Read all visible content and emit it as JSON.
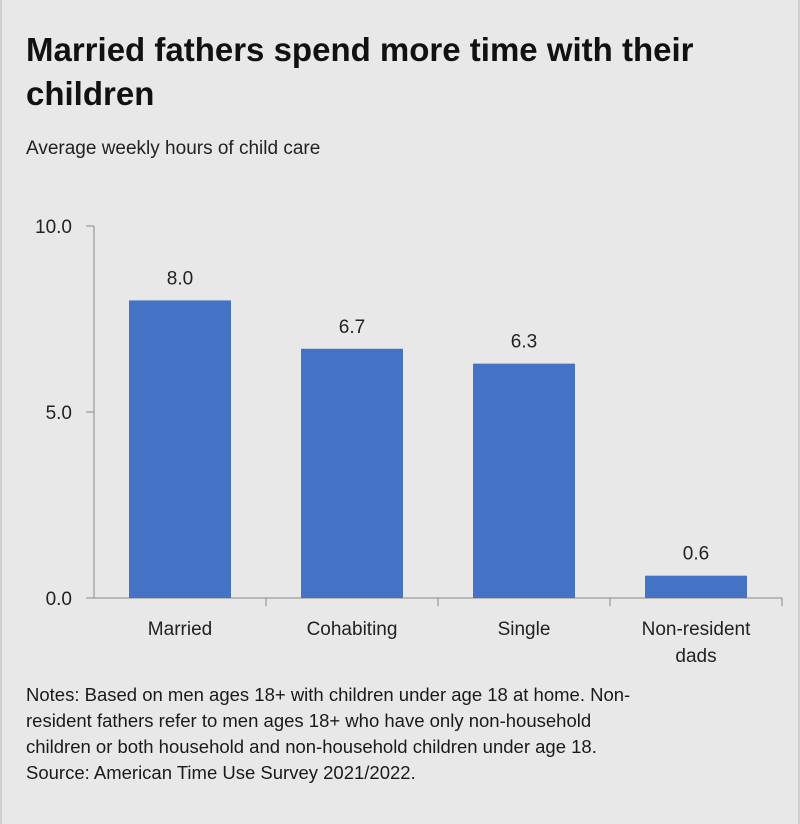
{
  "title_line1": "Married fathers spend more time with their",
  "title_line2": "children",
  "subtitle": "Average weekly hours of child care",
  "notes": [
    "Notes: Based on men ages 18+ with children under age 18 at home. Non-",
    "resident fathers refer to men ages 18+ who have only non-household",
    "children or both household and non-household children under age 18.",
    "Source: American Time Use Survey 2021/2022."
  ],
  "colors": {
    "bar": "#4472c4",
    "background": "#e8e8e8",
    "axis": "#888888"
  },
  "chart_data": {
    "type": "bar",
    "title": "Married fathers spend more time with their children",
    "subtitle": "Average weekly hours of child care",
    "categories": [
      [
        "Married"
      ],
      [
        "Cohabiting"
      ],
      [
        "Single"
      ],
      [
        "Non-resident",
        "dads"
      ]
    ],
    "values": [
      8.0,
      6.7,
      6.3,
      0.6
    ],
    "value_labels": [
      "8.0",
      "6.7",
      "6.3",
      "0.6"
    ],
    "ylim": [
      0,
      10
    ],
    "yticks": [
      0,
      5,
      10
    ],
    "ytick_labels": [
      "0.0",
      "5.0",
      "10.0"
    ],
    "grid": false,
    "legend": "none"
  }
}
